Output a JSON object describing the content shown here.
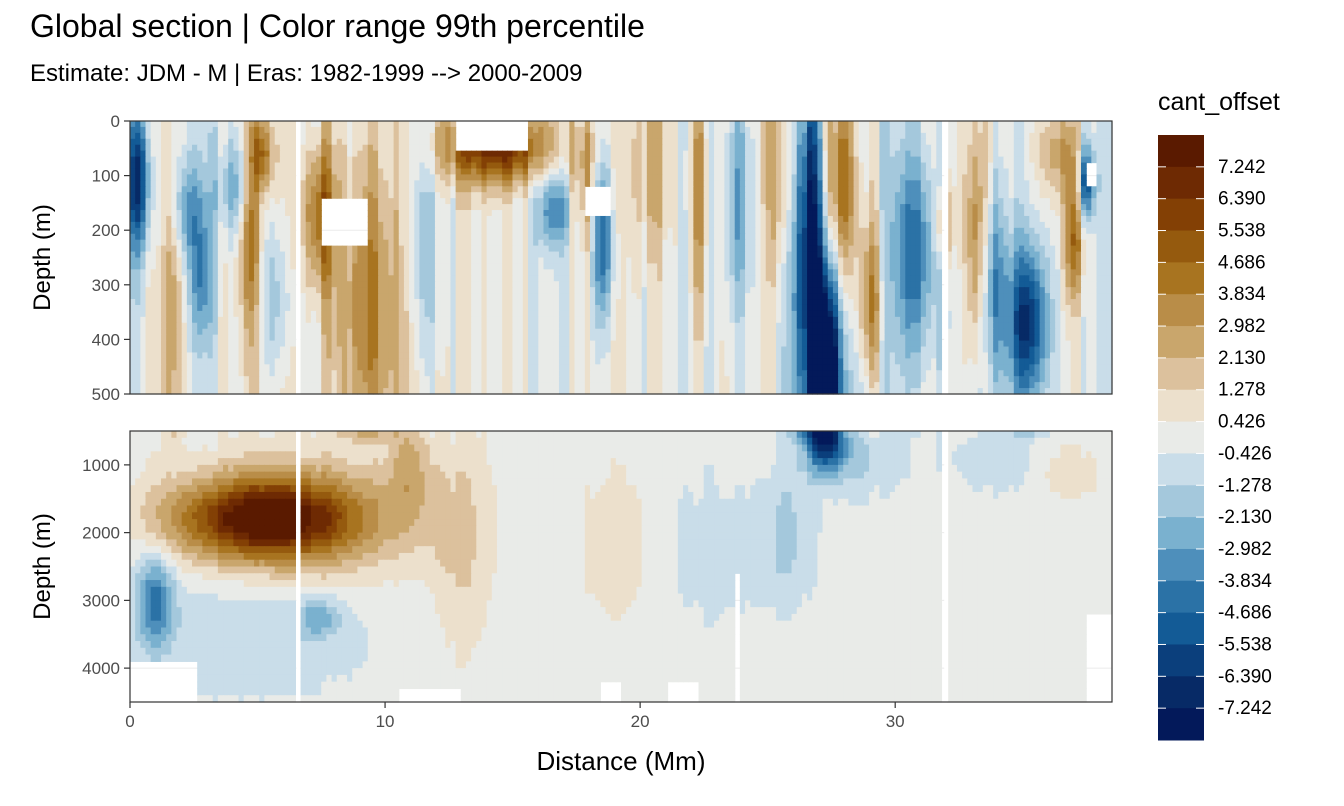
{
  "title": "Global section | Color range 99th percentile",
  "subtitle": "Estimate: JDM - M | Eras: 1982-1999 --> 2000-2009",
  "chart_data": {
    "type": "heatmap",
    "xlabel": "Distance (Mm)",
    "xlim": [
      0,
      38.5
    ],
    "x_ticks": [
      "0",
      "10",
      "20",
      "30"
    ],
    "x_tick_values": [
      0,
      10,
      20,
      30
    ],
    "grid": true,
    "legend_position": "right",
    "panels": [
      {
        "ylabel": "Depth (m)",
        "ylim": [
          0,
          500
        ],
        "y_reversed": true,
        "y_ticks": [
          "0",
          "100",
          "200",
          "300",
          "400",
          "500"
        ],
        "y_tick_values": [
          0,
          100,
          200,
          300,
          400,
          500
        ]
      },
      {
        "ylabel": "Depth (m)",
        "ylim": [
          500,
          4500
        ],
        "y_reversed": true,
        "y_ticks": [
          "1000",
          "2000",
          "3000",
          "4000"
        ],
        "y_tick_values": [
          1000,
          2000,
          3000,
          4000
        ]
      }
    ],
    "legend": {
      "title": "cant_offset",
      "labels": [
        "7.242",
        "6.390",
        "5.538",
        "4.686",
        "3.834",
        "2.982",
        "2.130",
        "1.278",
        "0.426",
        "-0.426",
        "-1.278",
        "-2.130",
        "-2.982",
        "-3.834",
        "-4.686",
        "-5.538",
        "-6.390",
        "-7.242"
      ],
      "colors": [
        "#5a1a00",
        "#6e2a03",
        "#834005",
        "#955a0e",
        "#a87420",
        "#b98d48",
        "#c9a66c",
        "#dcc19d",
        "#ece0cc",
        "#e9ebe8",
        "#c9dde9",
        "#a4c8dc",
        "#7ab1cf",
        "#4e8fbb",
        "#2b72a6",
        "#135b96",
        "#0b3f7c",
        "#072a66",
        "#03195a"
      ]
    },
    "breaks": [
      8.094,
      7.242,
      6.39,
      5.538,
      4.686,
      3.834,
      2.982,
      2.13,
      1.278,
      0.426,
      -0.426,
      -1.278,
      -2.13,
      -2.982,
      -3.834,
      -4.686,
      -5.538,
      -6.39,
      -7.242,
      -8.094
    ],
    "features": [
      {
        "x": 0.3,
        "depth": 110,
        "sx": 0.35,
        "sd": 90,
        "amp": -6
      },
      {
        "x": 2.2,
        "depth": 160,
        "sx": 0.45,
        "sd": 70,
        "amp": -3
      },
      {
        "x": 1.7,
        "depth": 330,
        "sx": 0.25,
        "sd": 170,
        "amp": 2.6
      },
      {
        "x": 2.8,
        "depth": 290,
        "sx": 0.35,
        "sd": 90,
        "amp": -3.2
      },
      {
        "x": 4.7,
        "depth": 210,
        "sx": 0.3,
        "sd": 130,
        "amp": 3.8
      },
      {
        "x": 5.2,
        "depth": 60,
        "sx": 0.3,
        "sd": 50,
        "amp": 4.4
      },
      {
        "x": 4.1,
        "depth": 120,
        "sx": 0.5,
        "sd": 60,
        "amp": -2.8
      },
      {
        "x": 5.7,
        "depth": 330,
        "sx": 0.45,
        "sd": 100,
        "amp": -2.2
      },
      {
        "x": 7.4,
        "depth": 170,
        "sx": 0.45,
        "sd": 100,
        "amp": 4.8
      },
      {
        "x": 9.3,
        "depth": 330,
        "sx": 0.9,
        "sd": 200,
        "amp": 3.6
      },
      {
        "x": 11.6,
        "depth": 250,
        "sx": 0.55,
        "sd": 170,
        "amp": -1.7
      },
      {
        "x": 14.4,
        "depth": 45,
        "sx": 1.6,
        "sd": 50,
        "amp": 6.8
      },
      {
        "x": 16.6,
        "depth": 160,
        "sx": 0.5,
        "sd": 50,
        "amp": -3.6
      },
      {
        "x": 18.5,
        "depth": 200,
        "sx": 0.3,
        "sd": 110,
        "amp": -5.8
      },
      {
        "x": 18.0,
        "depth": 120,
        "sx": 0.5,
        "sd": 100,
        "amp": 2.8
      },
      {
        "x": 20.5,
        "depth": 90,
        "sx": 0.7,
        "sd": 100,
        "amp": 1.9
      },
      {
        "x": 22.3,
        "depth": 130,
        "sx": 0.25,
        "sd": 180,
        "amp": 3.2
      },
      {
        "x": 23.8,
        "depth": 150,
        "sx": 0.4,
        "sd": 150,
        "amp": -3.0
      },
      {
        "x": 25.6,
        "depth": 90,
        "sx": 0.5,
        "sd": 130,
        "amp": 2.6
      },
      {
        "x": 26.6,
        "depth": 220,
        "sx": 0.45,
        "sd": 230,
        "amp": -7.0
      },
      {
        "x": 27.3,
        "depth": 420,
        "sx": 0.35,
        "sd": 120,
        "amp": -6.2
      },
      {
        "x": 27.9,
        "depth": 120,
        "sx": 0.45,
        "sd": 130,
        "amp": 5.0
      },
      {
        "x": 29.0,
        "depth": 330,
        "sx": 0.35,
        "sd": 110,
        "amp": 4.0
      },
      {
        "x": 30.8,
        "depth": 240,
        "sx": 0.7,
        "sd": 130,
        "amp": -4.0
      },
      {
        "x": 31.9,
        "depth": 190,
        "sx": 0.22,
        "sd": 60,
        "amp": 4.4
      },
      {
        "x": 33.2,
        "depth": 220,
        "sx": 0.3,
        "sd": 160,
        "amp": 4.6
      },
      {
        "x": 33.8,
        "depth": 290,
        "sx": 0.45,
        "sd": 130,
        "amp": -3.4
      },
      {
        "x": 35.2,
        "depth": 370,
        "sx": 0.55,
        "sd": 100,
        "amp": -6.2
      },
      {
        "x": 36.5,
        "depth": 60,
        "sx": 0.6,
        "sd": 60,
        "amp": 2.8
      },
      {
        "x": 37.5,
        "depth": 110,
        "sx": 0.22,
        "sd": 50,
        "amp": -6.0
      },
      {
        "x": 37.0,
        "depth": 220,
        "sx": 0.3,
        "sd": 80,
        "amp": 4.2
      },
      {
        "x": 5.2,
        "depth": 1800,
        "sx": 2.5,
        "sd": 420,
        "amp": 6.8
      },
      {
        "x": 6.8,
        "depth": 1850,
        "sx": 3.3,
        "sd": 700,
        "amp": 2.6
      },
      {
        "x": 11.0,
        "depth": 1000,
        "sx": 0.6,
        "sd": 600,
        "amp": 2.2
      },
      {
        "x": 1.0,
        "depth": 3000,
        "sx": 0.5,
        "sd": 500,
        "amp": -4.0
      },
      {
        "x": 7.4,
        "depth": 3250,
        "sx": 0.6,
        "sd": 200,
        "amp": -2.3
      },
      {
        "x": 5.0,
        "depth": 3300,
        "sx": 3.5,
        "sd": 800,
        "amp": -1.2
      },
      {
        "x": 13.0,
        "depth": 2200,
        "sx": 0.8,
        "sd": 1200,
        "amp": 1.3
      },
      {
        "x": 19.0,
        "depth": 2200,
        "sx": 1.0,
        "sd": 800,
        "amp": 0.9
      },
      {
        "x": 23.0,
        "depth": 2300,
        "sx": 1.2,
        "sd": 800,
        "amp": -0.9
      },
      {
        "x": 25.7,
        "depth": 2100,
        "sx": 0.8,
        "sd": 700,
        "amp": -1.5
      },
      {
        "x": 27.3,
        "depth": 700,
        "sx": 0.5,
        "sd": 250,
        "amp": -5.8
      },
      {
        "x": 28.0,
        "depth": 900,
        "sx": 1.4,
        "sd": 400,
        "amp": -1.6
      },
      {
        "x": 34.0,
        "depth": 900,
        "sx": 1.4,
        "sd": 400,
        "amp": -1.0
      },
      {
        "x": 36.8,
        "depth": 1100,
        "sx": 1.0,
        "sd": 300,
        "amp": 1.1
      }
    ],
    "gaps_x": [
      6.6,
      32.0
    ],
    "missing_top": [
      {
        "x": [
          7.5,
          9.3
        ],
        "depth": [
          140,
          230
        ]
      },
      {
        "x": [
          17.8,
          18.8
        ],
        "depth": [
          120,
          170
        ]
      },
      {
        "x": [
          37.4,
          37.9
        ],
        "depth": [
          80,
          120
        ]
      },
      {
        "x": [
          12.7,
          15.6
        ],
        "depth": [
          0,
          55
        ]
      }
    ],
    "missing_bottom": [
      {
        "x": [
          0,
          2.6
        ],
        "depth": [
          3900,
          4500
        ]
      },
      {
        "x": [
          10.5,
          13.0
        ],
        "depth": [
          4300,
          4500
        ]
      },
      {
        "x": [
          18.5,
          19.3
        ],
        "depth": [
          4200,
          4500
        ]
      },
      {
        "x": [
          21.0,
          22.2
        ],
        "depth": [
          4200,
          4500
        ]
      },
      {
        "x": [
          23.8,
          24.0
        ],
        "depth": [
          2600,
          4500
        ]
      },
      {
        "x": [
          37.5,
          38.5
        ],
        "depth": [
          3200,
          4500
        ]
      }
    ]
  }
}
